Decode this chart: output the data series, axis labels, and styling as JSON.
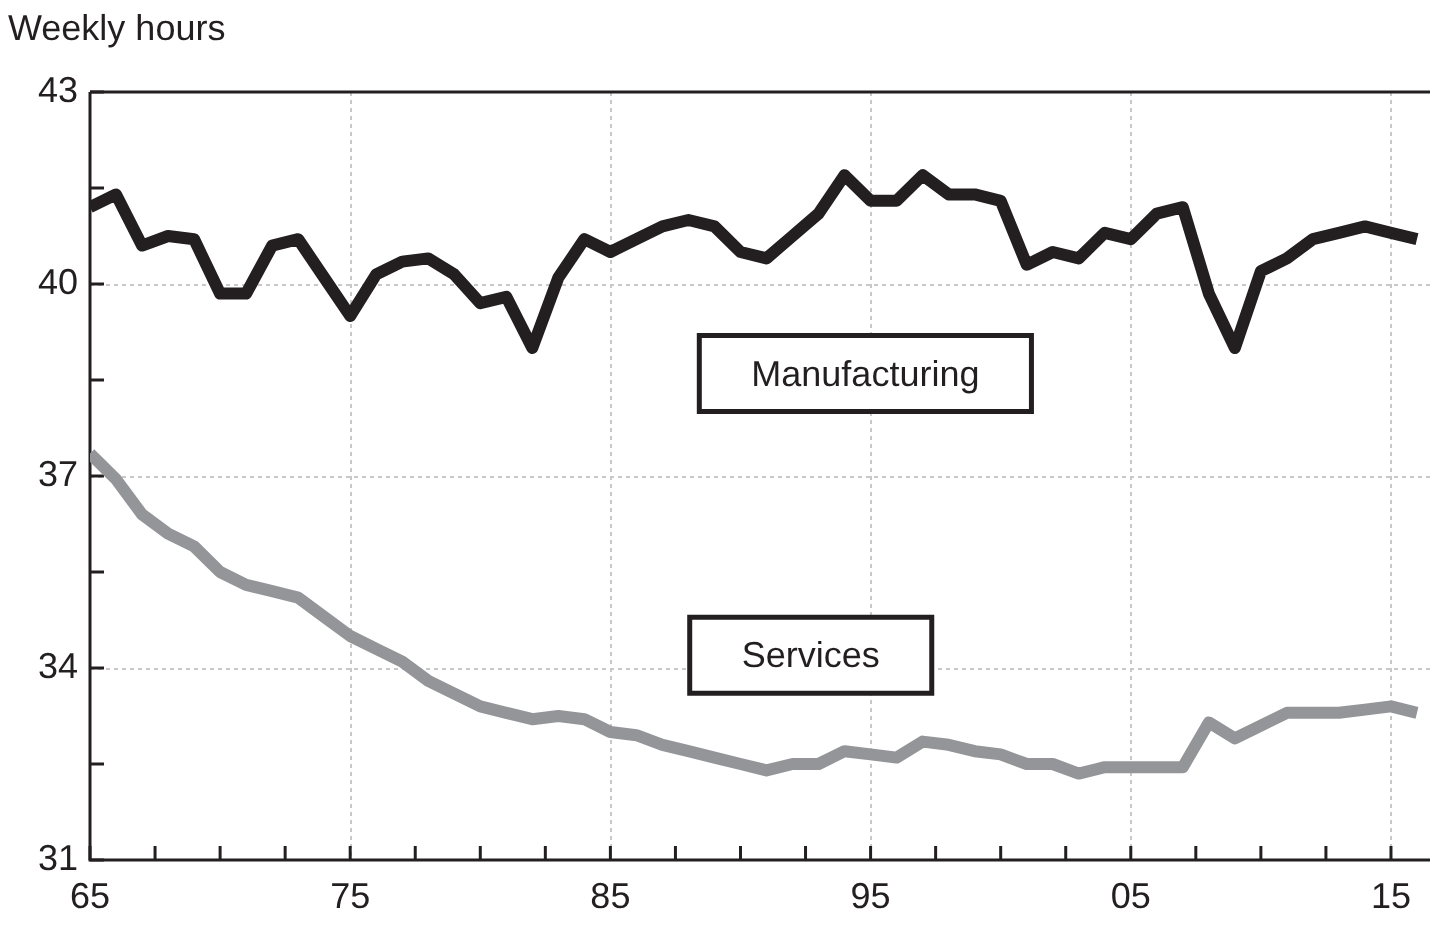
{
  "chart_data": {
    "type": "line",
    "ylabel": "Weekly hours",
    "x": [
      1965,
      1966,
      1967,
      1968,
      1969,
      1970,
      1971,
      1972,
      1973,
      1974,
      1975,
      1976,
      1977,
      1978,
      1979,
      1980,
      1981,
      1982,
      1983,
      1984,
      1985,
      1986,
      1987,
      1988,
      1989,
      1990,
      1991,
      1992,
      1993,
      1994,
      1995,
      1996,
      1997,
      1998,
      1999,
      2000,
      2001,
      2002,
      2003,
      2004,
      2005,
      2006,
      2007,
      2008,
      2009,
      2010,
      2011,
      2012,
      2013,
      2014,
      2015,
      2016
    ],
    "series": [
      {
        "name": "Manufacturing",
        "color": "#231f20",
        "values": [
          41.2,
          41.4,
          40.6,
          40.75,
          40.7,
          39.85,
          39.85,
          40.6,
          40.7,
          40.1,
          39.5,
          40.15,
          40.35,
          40.4,
          40.15,
          39.7,
          39.8,
          39.0,
          40.1,
          40.7,
          40.5,
          40.7,
          40.9,
          41.0,
          40.9,
          40.5,
          40.4,
          40.75,
          41.1,
          41.7,
          41.3,
          41.3,
          41.7,
          41.4,
          41.4,
          41.3,
          40.3,
          40.5,
          40.4,
          40.8,
          40.7,
          41.1,
          41.2,
          39.85,
          39.0,
          40.2,
          40.4,
          40.7,
          40.8,
          40.9,
          40.8,
          40.7
        ]
      },
      {
        "name": "Services",
        "color": "#939598",
        "values": [
          37.35,
          36.95,
          36.4,
          36.1,
          35.9,
          35.5,
          35.3,
          35.2,
          35.1,
          34.8,
          34.5,
          34.3,
          34.1,
          33.8,
          33.6,
          33.4,
          33.3,
          33.2,
          33.25,
          33.2,
          33.0,
          32.95,
          32.8,
          32.7,
          32.6,
          32.5,
          32.4,
          32.5,
          32.5,
          32.7,
          32.65,
          32.6,
          32.85,
          32.8,
          32.7,
          32.65,
          32.5,
          32.5,
          32.35,
          32.45,
          32.45,
          32.45,
          32.45,
          33.15,
          32.9,
          33.1,
          33.3,
          33.3,
          33.3,
          33.35,
          33.4,
          33.3
        ]
      }
    ],
    "xlim": [
      1965,
      2016.5
    ],
    "xticks": [
      {
        "value": 1965,
        "label": "65"
      },
      {
        "value": 1967.5,
        "label": null
      },
      {
        "value": 1970,
        "label": null
      },
      {
        "value": 1972.5,
        "label": null
      },
      {
        "value": 1975,
        "label": "75"
      },
      {
        "value": 1977.5,
        "label": null
      },
      {
        "value": 1980,
        "label": null
      },
      {
        "value": 1982.5,
        "label": null
      },
      {
        "value": 1985,
        "label": "85"
      },
      {
        "value": 1987.5,
        "label": null
      },
      {
        "value": 1990,
        "label": null
      },
      {
        "value": 1992.5,
        "label": null
      },
      {
        "value": 1995,
        "label": "95"
      },
      {
        "value": 1997.5,
        "label": null
      },
      {
        "value": 2000,
        "label": null
      },
      {
        "value": 2002.5,
        "label": null
      },
      {
        "value": 2005,
        "label": "05"
      },
      {
        "value": 2007.5,
        "label": null
      },
      {
        "value": 2010,
        "label": null
      },
      {
        "value": 2012.5,
        "label": null
      },
      {
        "value": 2015,
        "label": "15"
      }
    ],
    "ylim": [
      31,
      43
    ],
    "yticks": [
      31,
      {
        "value": 32.5,
        "label": null
      },
      34,
      {
        "value": 35.5,
        "label": null
      },
      37,
      {
        "value": 38.5,
        "label": null
      },
      40,
      {
        "value": 41.5,
        "label": null
      },
      43
    ],
    "grid": true,
    "legend": false,
    "marker": "none",
    "line_style": "solid"
  }
}
